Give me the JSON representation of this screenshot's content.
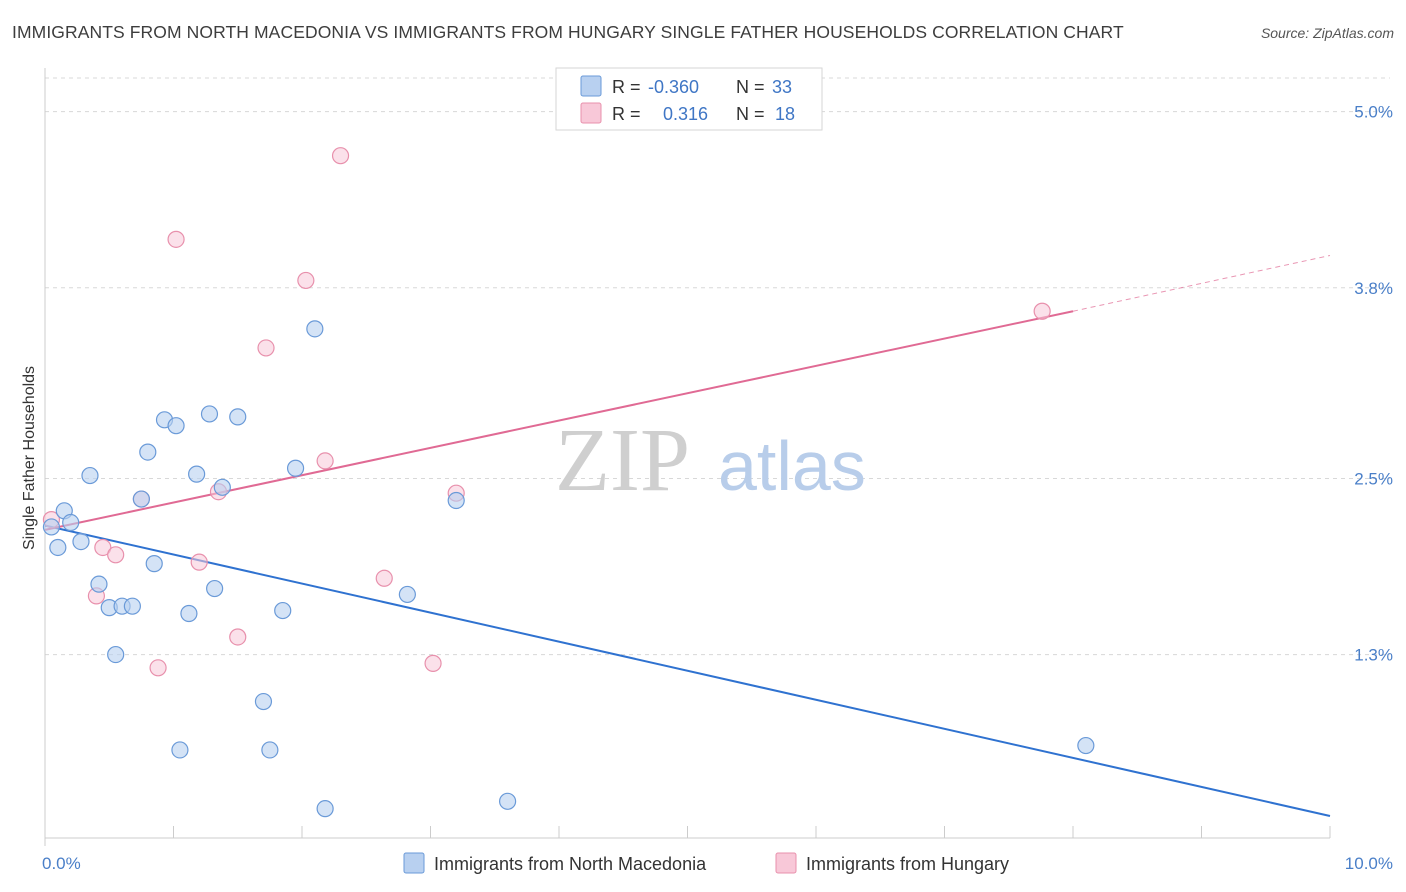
{
  "title": "IMMIGRANTS FROM NORTH MACEDONIA VS IMMIGRANTS FROM HUNGARY SINGLE FATHER HOUSEHOLDS CORRELATION CHART",
  "source": "Source: ZipAtlas.com",
  "watermark": {
    "zip": "ZIP",
    "atlas": "atlas"
  },
  "colors": {
    "blue_fill": "#b8d0f0",
    "blue_stroke": "#6a9ad8",
    "blue_line": "#2f72d0",
    "pink_fill": "#f8c8d8",
    "pink_stroke": "#e890ac",
    "pink_line": "#e06a94",
    "grid": "#d8d8d8",
    "tick_text": "#4a7fc8"
  },
  "legend": {
    "rows": [
      {
        "r_label": "R =",
        "r_value": "-0.360",
        "n_label": "N =",
        "n_value": "33"
      },
      {
        "r_label": "R =",
        "r_value": "0.316",
        "n_label": "N =",
        "n_value": "18"
      }
    ]
  },
  "chart_data": {
    "type": "scatter",
    "title": "IMMIGRANTS FROM NORTH MACEDONIA VS IMMIGRANTS FROM HUNGARY SINGLE FATHER HOUSEHOLDS CORRELATION CHART",
    "xlabel": "",
    "ylabel": "Single Father Households",
    "xlim": [
      0,
      10
    ],
    "ylim": [
      0.05,
      5.25
    ],
    "x_tick_labels": [
      "0.0%",
      "10.0%"
    ],
    "y_ticks": [
      1.3,
      2.5,
      3.8,
      5.0
    ],
    "y_tick_labels": [
      "1.3%",
      "2.5%",
      "3.8%",
      "5.0%"
    ],
    "grid": true,
    "legend_position": "top-center",
    "series": [
      {
        "name": "Immigrants from North Macedonia",
        "color": "#6a9ad8",
        "points": [
          [
            0.05,
            2.17
          ],
          [
            0.1,
            2.03
          ],
          [
            0.15,
            2.28
          ],
          [
            0.2,
            2.2
          ],
          [
            0.28,
            2.07
          ],
          [
            0.35,
            2.52
          ],
          [
            0.42,
            1.78
          ],
          [
            0.5,
            1.62
          ],
          [
            0.55,
            1.3
          ],
          [
            0.6,
            1.63
          ],
          [
            0.68,
            1.63
          ],
          [
            0.75,
            2.36
          ],
          [
            0.8,
            2.68
          ],
          [
            0.85,
            1.92
          ],
          [
            0.93,
            2.9
          ],
          [
            1.02,
            2.86
          ],
          [
            1.05,
            0.65
          ],
          [
            1.12,
            1.58
          ],
          [
            1.18,
            2.53
          ],
          [
            1.28,
            2.94
          ],
          [
            1.32,
            1.75
          ],
          [
            1.38,
            2.44
          ],
          [
            1.5,
            2.92
          ],
          [
            1.7,
            0.98
          ],
          [
            1.75,
            0.65
          ],
          [
            1.85,
            1.6
          ],
          [
            1.95,
            2.57
          ],
          [
            2.1,
            3.52
          ],
          [
            2.18,
            0.25
          ],
          [
            2.82,
            1.71
          ],
          [
            3.2,
            2.35
          ],
          [
            3.6,
            0.3
          ],
          [
            8.1,
            0.68
          ]
        ],
        "trend": {
          "x": [
            0,
            10
          ],
          "y": [
            2.18,
            0.2
          ]
        }
      },
      {
        "name": "Immigrants from Hungary",
        "color": "#e890ac",
        "points": [
          [
            0.05,
            2.22
          ],
          [
            0.4,
            1.7
          ],
          [
            0.45,
            2.03
          ],
          [
            0.55,
            1.98
          ],
          [
            0.75,
            2.36
          ],
          [
            0.88,
            1.21
          ],
          [
            1.02,
            4.13
          ],
          [
            1.2,
            1.93
          ],
          [
            1.35,
            2.41
          ],
          [
            1.5,
            1.42
          ],
          [
            1.72,
            3.39
          ],
          [
            2.03,
            3.85
          ],
          [
            2.18,
            2.62
          ],
          [
            2.3,
            4.7
          ],
          [
            2.64,
            1.82
          ],
          [
            3.02,
            1.24
          ],
          [
            3.2,
            2.4
          ],
          [
            7.76,
            3.64
          ]
        ],
        "trend": {
          "x": [
            0,
            8.0
          ],
          "y": [
            2.15,
            3.64
          ]
        },
        "trend_dashed": {
          "x": [
            8.0,
            10
          ],
          "y": [
            3.64,
            4.02
          ]
        }
      }
    ]
  }
}
